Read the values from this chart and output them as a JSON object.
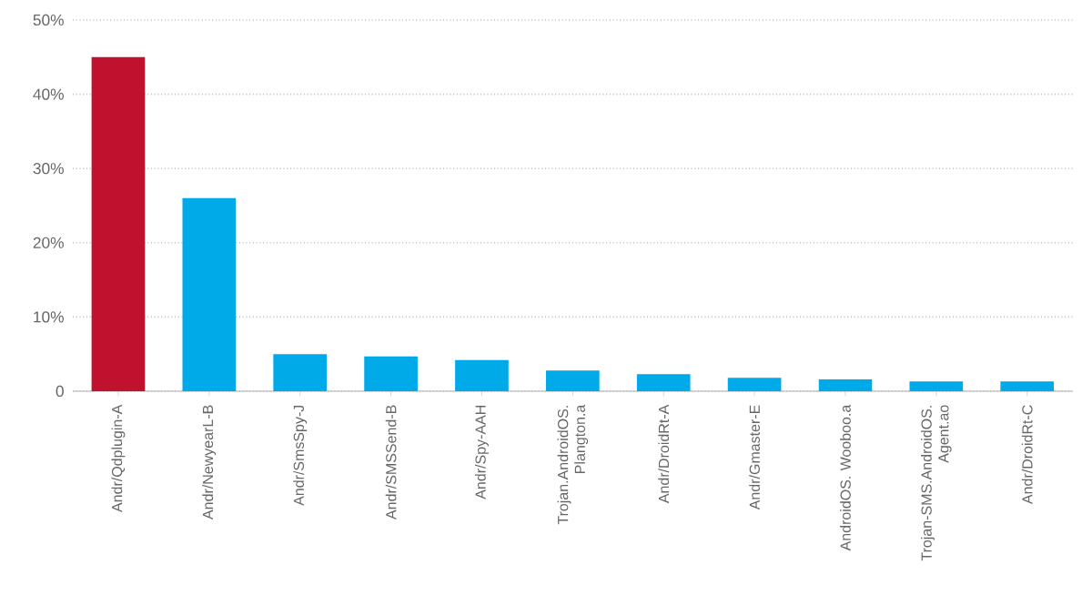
{
  "chart_data": {
    "type": "bar",
    "categories": [
      "Andr/Qdplugin-A",
      "Andr/NewyearL-B",
      "Andr/SmsSpy-J",
      "Andr/SMSSend-B",
      "Andr/Spy-AAH",
      "Trojan.AndroidOS. Plangton.a",
      "Andr/DroidRt-A",
      "Andr/Gmaster-E",
      "AndroidOS. Wooboo.a",
      "Trojan-SMS.AndroidOS. Agent.ao",
      "Andr/DroidRt-C"
    ],
    "values": [
      45,
      26,
      5.0,
      4.7,
      4.2,
      2.8,
      2.3,
      1.8,
      1.6,
      1.3,
      1.3
    ],
    "colors": [
      "#c0112e",
      "#00a9e8",
      "#00a9e8",
      "#00a9e8",
      "#00a9e8",
      "#00a9e8",
      "#00a9e8",
      "#00a9e8",
      "#00a9e8",
      "#00a9e8",
      "#00a9e8"
    ],
    "ylim": [
      0,
      50
    ],
    "yticks": [
      {
        "value": 0,
        "label": "0"
      },
      {
        "value": 10,
        "label": "10%"
      },
      {
        "value": 20,
        "label": "20%"
      },
      {
        "value": 30,
        "label": "30%"
      },
      {
        "value": 40,
        "label": "40%"
      },
      {
        "value": 50,
        "label": "50%"
      }
    ],
    "grid": "y"
  }
}
